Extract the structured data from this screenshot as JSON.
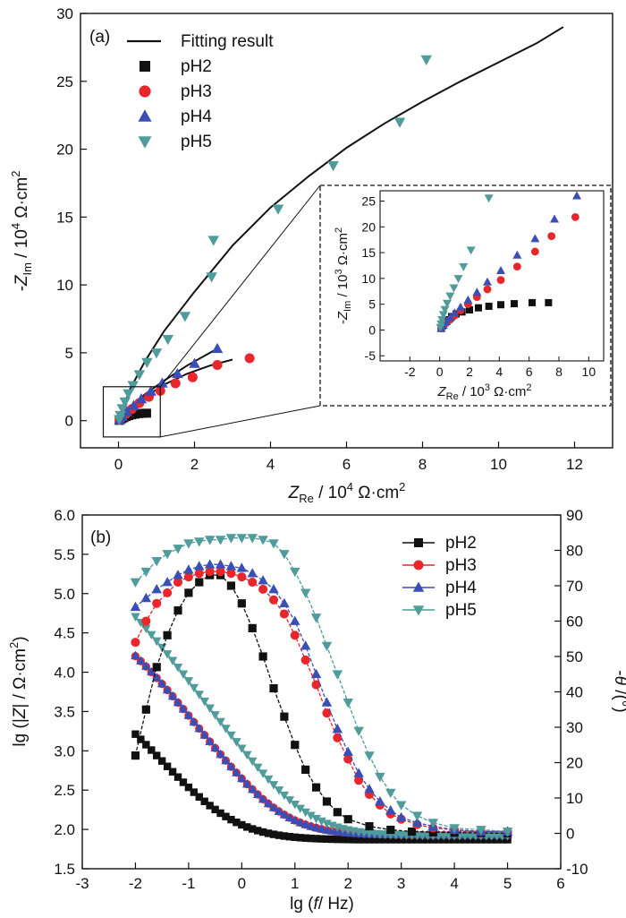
{
  "colors": {
    "pH2": "#111111",
    "pH3": "#e8262b",
    "pH4": "#3a4fb5",
    "pH5": "#4f9c9a",
    "fit": "#111111"
  },
  "chart_data": [
    {
      "type": "scatter",
      "panel_label": "(a)",
      "title": "",
      "xlabel": {
        "main": "Z",
        "sub": "Re",
        "unit_pre": " / 10",
        "unit_exp": "4",
        "unit_post": " Ω·cm",
        "unit_sq": "2"
      },
      "ylabel": {
        "main": "-Z",
        "sub": "Im",
        "unit_pre": " / 10",
        "unit_exp": "4",
        "unit_post": " Ω·cm",
        "unit_sq": "2"
      },
      "xlim": [
        -1,
        13
      ],
      "ylim": [
        -2,
        30
      ],
      "xticks": [
        0,
        2,
        4,
        6,
        8,
        10,
        12
      ],
      "yticks": [
        0,
        5,
        10,
        15,
        20,
        25,
        30
      ],
      "legend": {
        "position": "top-left",
        "fit_label": "Fitting result",
        "entries": [
          "pH2",
          "pH3",
          "pH4",
          "pH5"
        ]
      },
      "series": [
        {
          "name": "pH2",
          "marker": "square",
          "x": [
            0.02,
            0.05,
            0.09,
            0.14,
            0.2,
            0.27,
            0.35,
            0.44,
            0.54,
            0.64,
            0.74
          ],
          "y": [
            0.02,
            0.08,
            0.15,
            0.22,
            0.3,
            0.37,
            0.43,
            0.48,
            0.52,
            0.54,
            0.55
          ]
        },
        {
          "name": "pH3",
          "marker": "circle",
          "x": [
            0.03,
            0.1,
            0.2,
            0.35,
            0.55,
            0.8,
            1.1,
            1.5,
            1.95,
            2.6,
            3.45
          ],
          "y": [
            0.05,
            0.25,
            0.5,
            0.85,
            1.3,
            1.75,
            2.2,
            2.75,
            3.2,
            4.1,
            4.6
          ]
        },
        {
          "name": "pH4",
          "marker": "triangle-up",
          "x": [
            0.03,
            0.1,
            0.22,
            0.4,
            0.6,
            0.85,
            1.15,
            1.55,
            2.0,
            2.6
          ],
          "y": [
            0.05,
            0.3,
            0.65,
            1.1,
            1.6,
            2.15,
            2.75,
            3.45,
            4.2,
            5.3
          ]
        },
        {
          "name": "pH5",
          "marker": "triangle-down",
          "x": [
            0.02,
            0.05,
            0.1,
            0.17,
            0.26,
            0.38,
            0.55,
            0.75,
            1.0,
            1.3,
            1.75,
            2.45,
            2.5,
            4.2,
            5.65,
            7.4,
            8.1
          ],
          "y": [
            0.1,
            0.4,
            0.9,
            1.4,
            2.0,
            2.6,
            3.4,
            4.3,
            5.0,
            6.0,
            7.7,
            10.6,
            13.3,
            15.6,
            18.8,
            22.0,
            26.6
          ]
        }
      ],
      "fits": [
        {
          "name": "fit-pH2",
          "x": [
            0,
            0.1,
            0.2,
            0.35,
            0.5,
            0.65,
            0.8
          ],
          "y": [
            0,
            0.13,
            0.27,
            0.4,
            0.48,
            0.53,
            0.55
          ]
        },
        {
          "name": "fit-pH3",
          "x": [
            0,
            0.3,
            0.7,
            1.2,
            1.8,
            2.4,
            3.0
          ],
          "y": [
            0,
            0.9,
            1.75,
            2.65,
            3.45,
            4.05,
            4.5
          ]
        },
        {
          "name": "fit-pH4",
          "x": [
            0,
            0.3,
            0.7,
            1.2,
            1.8,
            2.5
          ],
          "y": [
            0,
            1.0,
            1.95,
            2.95,
            4.05,
            5.15
          ]
        },
        {
          "name": "fit-pH5",
          "x": [
            0,
            0.3,
            0.7,
            1.2,
            2.0,
            3.0,
            4.0,
            5.0,
            6.0,
            7.0,
            8.0,
            9.0,
            10.0,
            11.0,
            11.7
          ],
          "y": [
            0,
            2.3,
            4.4,
            6.6,
            9.5,
            12.9,
            15.7,
            18.0,
            20.1,
            21.9,
            23.5,
            25.0,
            26.4,
            27.8,
            29.0
          ]
        }
      ],
      "zoom_box": {
        "x": [
          -0.4,
          1.1
        ],
        "y": [
          -1.2,
          2.5
        ]
      },
      "inset": {
        "xlabel": {
          "main": "Z",
          "sub": "Re",
          "unit_pre": " / 10",
          "unit_exp": "3",
          "unit_post": " Ω·cm",
          "unit_sq": "2"
        },
        "ylabel": {
          "main": "-Z",
          "sub": "Im",
          "unit_pre": " / 10",
          "unit_exp": "3",
          "unit_post": " Ω·cm",
          "unit_sq": "2"
        },
        "xlim": [
          -4,
          11
        ],
        "ylim": [
          -6,
          27
        ],
        "xticks": [
          -2,
          0,
          2,
          4,
          6,
          8,
          10
        ],
        "yticks": [
          -5,
          0,
          5,
          10,
          15,
          20,
          25
        ],
        "series": [
          {
            "name": "pH2",
            "marker": "square",
            "x": [
              0.1,
              0.2,
              0.35,
              0.55,
              0.8,
              1.1,
              1.5,
              2.0,
              2.6,
              3.3,
              4.1,
              5.0,
              6.2,
              7.3
            ],
            "y": [
              0.3,
              0.8,
              1.4,
              2.0,
              2.6,
              3.1,
              3.5,
              3.9,
              4.3,
              4.6,
              4.9,
              5.1,
              5.3,
              5.3
            ]
          },
          {
            "name": "pH3",
            "marker": "circle",
            "x": [
              0.1,
              0.25,
              0.45,
              0.7,
              1.0,
              1.4,
              1.9,
              2.5,
              3.2,
              4.1,
              5.2,
              6.4,
              7.5,
              9.1
            ],
            "y": [
              0.3,
              0.8,
              1.4,
              2.0,
              2.8,
              3.8,
              5.0,
              6.4,
              7.9,
              9.7,
              12.3,
              15.2,
              18.2,
              21.9
            ]
          },
          {
            "name": "pH4",
            "marker": "triangle-up",
            "x": [
              0.1,
              0.25,
              0.45,
              0.7,
              1.0,
              1.4,
              1.9,
              2.5,
              3.2,
              4.1,
              5.2,
              6.4,
              7.7,
              9.2
            ],
            "y": [
              0.3,
              0.9,
              1.6,
              2.4,
              3.3,
              4.4,
              5.8,
              7.3,
              9.3,
              11.5,
              14.5,
              17.7,
              21.5,
              26.0
            ]
          },
          {
            "name": "pH5",
            "marker": "triangle-down",
            "x": [
              0.05,
              0.1,
              0.15,
              0.25,
              0.35,
              0.5,
              0.7,
              0.95,
              1.25,
              1.6,
              2.1,
              3.3
            ],
            "y": [
              0.5,
              1.2,
              2.0,
              3.0,
              4.0,
              5.2,
              6.6,
              8.2,
              10.0,
              12.3,
              15.5,
              25.6
            ]
          }
        ]
      }
    },
    {
      "type": "scatter",
      "panel_label": "(b)",
      "title": "",
      "xlabel": {
        "pre": "lg (",
        "italic": "f",
        "post": "/ Hz)"
      },
      "ylabel": {
        "pre": "lg (|",
        "italic": "Z",
        "mid": "| / Ω·cm",
        "sq": "2",
        "post": ")"
      },
      "y2label": {
        "pre": "-",
        "italic": "θ",
        "post": " /(°)"
      },
      "xlim": [
        -3,
        6
      ],
      "ylim": [
        1.5,
        6.0
      ],
      "y2lim": [
        -10,
        90
      ],
      "xticks": [
        -3,
        -2,
        -1,
        0,
        1,
        2,
        3,
        4,
        5,
        6
      ],
      "yticks": [
        "1.5",
        "2.0",
        "2.5",
        "3.0",
        "3.5",
        "4.0",
        "4.5",
        "5.0",
        "5.5",
        "6.0"
      ],
      "y2ticks": [
        -10,
        0,
        10,
        20,
        30,
        40,
        50,
        60,
        70,
        80,
        90
      ],
      "legend": {
        "position": "top-right",
        "entries": [
          "pH2",
          "pH3",
          "pH4",
          "pH5"
        ]
      },
      "modulus_series": [
        {
          "name": "pH2",
          "lgZ_low": 3.96,
          "lgZ_high": 1.87,
          "f_corner": -0.3,
          "slope": 0.83
        },
        {
          "name": "pH3",
          "lgZ_low": 4.72,
          "lgZ_high": 1.93,
          "f_corner": 0.7,
          "slope": 0.9
        },
        {
          "name": "pH4",
          "lgZ_low": 4.74,
          "lgZ_high": 1.93,
          "f_corner": 0.7,
          "slope": 0.9
        },
        {
          "name": "pH5",
          "lgZ_low": 5.42,
          "lgZ_high": 1.92,
          "f_corner": 1.2,
          "slope": 0.9
        }
      ],
      "phase_series": [
        {
          "name": "pH2",
          "x": [
            -2.0,
            -1.8,
            -1.6,
            -1.4,
            -1.2,
            -1.0,
            -0.8,
            -0.6,
            -0.4,
            -0.2,
            0.0,
            0.2,
            0.4,
            0.6,
            0.8,
            1.0,
            1.2,
            1.4,
            1.6,
            1.8,
            2.0,
            2.4,
            2.8,
            3.2,
            3.6,
            4.0,
            4.5,
            5.0
          ],
          "y": [
            22,
            35,
            47,
            56,
            63,
            68,
            71,
            73,
            73,
            70,
            65,
            58,
            50,
            41,
            33,
            25,
            18,
            13,
            9,
            6,
            4,
            2,
            1,
            0.5,
            0.3,
            0.2,
            0.1,
            0
          ]
        },
        {
          "name": "pH3",
          "x": [
            -2.0,
            -1.8,
            -1.6,
            -1.4,
            -1.2,
            -1.0,
            -0.8,
            -0.6,
            -0.4,
            -0.2,
            0.0,
            0.2,
            0.4,
            0.6,
            0.8,
            1.0,
            1.2,
            1.4,
            1.6,
            1.8,
            2.0,
            2.2,
            2.4,
            2.6,
            2.8,
            3.0,
            3.3,
            3.6,
            4.0,
            4.5,
            5.0
          ],
          "y": [
            54,
            60,
            65,
            68,
            71,
            72.5,
            73.5,
            74,
            74,
            73.5,
            72.5,
            71,
            69,
            66,
            62,
            56,
            49,
            42,
            34,
            27,
            21,
            15,
            11,
            8,
            5.5,
            4,
            2.5,
            1.5,
            1,
            0.5,
            0.5
          ]
        },
        {
          "name": "pH4",
          "x": [
            -2.0,
            -1.8,
            -1.6,
            -1.4,
            -1.2,
            -1.0,
            -0.8,
            -0.6,
            -0.4,
            -0.2,
            0.0,
            0.2,
            0.4,
            0.6,
            0.8,
            1.0,
            1.2,
            1.4,
            1.6,
            1.8,
            2.0,
            2.2,
            2.4,
            2.6,
            2.8,
            3.0,
            3.3,
            3.6,
            4.0,
            4.5,
            5.0
          ],
          "y": [
            64,
            66.5,
            69,
            71,
            73,
            74.5,
            75.5,
            76,
            76,
            75.5,
            75,
            73.5,
            71.5,
            69,
            65,
            60,
            53,
            45,
            37,
            29.5,
            23,
            17,
            12.5,
            9,
            6.5,
            4.5,
            3,
            2,
            1,
            0.5,
            0.5
          ]
        },
        {
          "name": "pH5",
          "x": [
            -2.0,
            -1.8,
            -1.6,
            -1.4,
            -1.2,
            -1.0,
            -0.8,
            -0.6,
            -0.4,
            -0.2,
            0.0,
            0.2,
            0.4,
            0.6,
            0.8,
            1.0,
            1.2,
            1.4,
            1.6,
            1.8,
            2.0,
            2.2,
            2.4,
            2.6,
            2.8,
            3.0,
            3.3,
            3.6,
            4.0,
            4.5,
            5.0
          ],
          "y": [
            71,
            74,
            77,
            79,
            80.5,
            82,
            82.5,
            83,
            83,
            83.5,
            83.5,
            83.5,
            83,
            82,
            79,
            74,
            68,
            61,
            53,
            45,
            37,
            29,
            22,
            16,
            11.5,
            8,
            5,
            3,
            1.5,
            1,
            0.5
          ]
        }
      ]
    }
  ]
}
